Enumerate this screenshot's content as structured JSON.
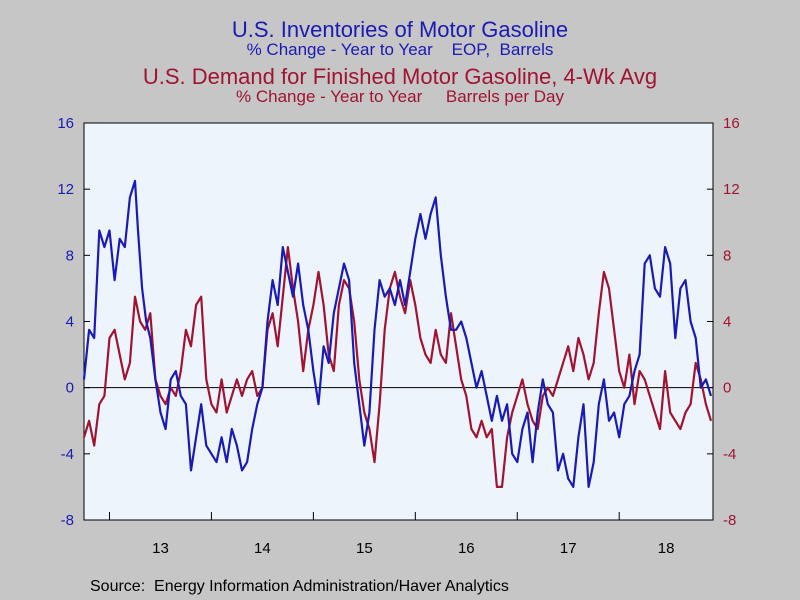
{
  "titles": {
    "title1": "U.S. Inventories of Motor Gasoline",
    "subtitle1": "% Change - Year to Year    EOP,  Barrels",
    "title2": "U.S. Demand for Finished Motor Gasoline, 4-Wk Avg",
    "subtitle2": "% Change - Year to Year     Barrels per Day"
  },
  "source": "Source:  Energy Information Administration/Haver Analytics",
  "colors": {
    "inventories": "#1a1ab4",
    "demand": "#a01432",
    "plot_bg": "#eef4fb",
    "frame_bg": "#c6c6c6"
  },
  "chart_data": {
    "type": "line",
    "x_tick_labels": [
      "13",
      "14",
      "15",
      "16",
      "17",
      "18"
    ],
    "xlim": [
      2012.75,
      2018.92
    ],
    "ylim": [
      -8,
      16
    ],
    "y_ticks": [
      -8,
      -4,
      0,
      4,
      8,
      12,
      16
    ],
    "y_tick_labels_left": [
      "-8",
      "-4",
      "0",
      "4",
      "8",
      "12",
      "16"
    ],
    "y_tick_labels_right": [
      "-8",
      "-4",
      "0",
      "4",
      "8",
      "12",
      "16"
    ],
    "zero_line": true,
    "grid": false,
    "series": [
      {
        "key": "inventories",
        "axis": "left",
        "x": [
          2012.75,
          2012.8,
          2012.85,
          2012.9,
          2012.95,
          2013.0,
          2013.05,
          2013.1,
          2013.15,
          2013.2,
          2013.25,
          2013.28,
          2013.32,
          2013.36,
          2013.4,
          2013.45,
          2013.5,
          2013.55,
          2013.6,
          2013.65,
          2013.7,
          2013.75,
          2013.8,
          2013.85,
          2013.9,
          2013.95,
          2014.0,
          2014.05,
          2014.1,
          2014.15,
          2014.2,
          2014.25,
          2014.3,
          2014.35,
          2014.4,
          2014.45,
          2014.5,
          2014.55,
          2014.6,
          2014.65,
          2014.7,
          2014.75,
          2014.8,
          2014.85,
          2014.9,
          2014.95,
          2015.0,
          2015.05,
          2015.1,
          2015.15,
          2015.2,
          2015.25,
          2015.3,
          2015.35,
          2015.4,
          2015.45,
          2015.5,
          2015.55,
          2015.6,
          2015.65,
          2015.7,
          2015.75,
          2015.8,
          2015.85,
          2015.9,
          2015.95,
          2016.0,
          2016.05,
          2016.1,
          2016.15,
          2016.2,
          2016.25,
          2016.3,
          2016.35,
          2016.4,
          2016.45,
          2016.5,
          2016.55,
          2016.6,
          2016.65,
          2016.7,
          2016.75,
          2016.8,
          2016.85,
          2016.9,
          2016.95,
          2017.0,
          2017.05,
          2017.1,
          2017.15,
          2017.2,
          2017.25,
          2017.3,
          2017.35,
          2017.4,
          2017.45,
          2017.5,
          2017.55,
          2017.6,
          2017.65,
          2017.7,
          2017.75,
          2017.8,
          2017.85,
          2017.9,
          2017.95,
          2018.0,
          2018.05,
          2018.1,
          2018.15,
          2018.2,
          2018.25,
          2018.3,
          2018.35,
          2018.4,
          2018.45,
          2018.5,
          2018.55,
          2018.6,
          2018.65,
          2018.7,
          2018.75,
          2018.8,
          2018.85,
          2018.9
        ],
        "values": [
          0.5,
          3.5,
          3.0,
          9.5,
          8.5,
          9.5,
          6.5,
          9.0,
          8.5,
          11.5,
          12.5,
          9.5,
          6.0,
          4.0,
          3.0,
          0.5,
          -1.5,
          -2.5,
          0.5,
          1.0,
          -0.5,
          -1.0,
          -5.0,
          -3.0,
          -1.0,
          -3.5,
          -4.0,
          -4.5,
          -3.0,
          -4.5,
          -2.5,
          -3.5,
          -5.0,
          -4.5,
          -2.5,
          -1.0,
          0.0,
          4.0,
          6.5,
          5.0,
          8.5,
          7.0,
          5.5,
          7.5,
          5.0,
          3.5,
          1.0,
          -1.0,
          2.5,
          1.5,
          4.5,
          6.0,
          7.5,
          6.5,
          1.5,
          -1.0,
          -3.5,
          -1.5,
          3.5,
          6.5,
          5.5,
          6.0,
          5.0,
          6.5,
          5.0,
          7.0,
          9.0,
          10.5,
          9.0,
          10.5,
          11.5,
          8.0,
          5.5,
          3.5,
          3.5,
          4.0,
          3.0,
          1.5,
          0.0,
          1.0,
          -0.5,
          -2.0,
          -0.5,
          -2.0,
          -1.0,
          -4.0,
          -4.5,
          -2.5,
          -1.5,
          -4.5,
          -1.5,
          0.5,
          -1.0,
          -1.5,
          -5.0,
          -4.0,
          -5.5,
          -6.0,
          -3.0,
          -1.0,
          -6.0,
          -4.5,
          -1.0,
          0.5,
          -2.0,
          -1.5,
          -3.0,
          -1.0,
          -0.5,
          1.0,
          2.0,
          7.5,
          8.0,
          6.0,
          5.5,
          8.5,
          7.5,
          3.0,
          6.0,
          6.5,
          4.0,
          3.0,
          0.0,
          0.5,
          -0.5
        ],
        "ylim": [
          -8,
          16
        ]
      },
      {
        "key": "demand",
        "axis": "right",
        "x": [
          2012.75,
          2012.8,
          2012.85,
          2012.9,
          2012.95,
          2013.0,
          2013.05,
          2013.1,
          2013.15,
          2013.2,
          2013.25,
          2013.3,
          2013.35,
          2013.4,
          2013.45,
          2013.5,
          2013.55,
          2013.6,
          2013.65,
          2013.7,
          2013.75,
          2013.8,
          2013.85,
          2013.9,
          2013.95,
          2014.0,
          2014.05,
          2014.1,
          2014.15,
          2014.2,
          2014.25,
          2014.3,
          2014.35,
          2014.4,
          2014.45,
          2014.5,
          2014.55,
          2014.6,
          2014.65,
          2014.7,
          2014.75,
          2014.8,
          2014.85,
          2014.9,
          2014.95,
          2015.0,
          2015.05,
          2015.1,
          2015.15,
          2015.2,
          2015.25,
          2015.3,
          2015.35,
          2015.4,
          2015.45,
          2015.5,
          2015.55,
          2015.6,
          2015.65,
          2015.7,
          2015.75,
          2015.8,
          2015.85,
          2015.9,
          2015.95,
          2016.0,
          2016.05,
          2016.1,
          2016.15,
          2016.2,
          2016.25,
          2016.3,
          2016.35,
          2016.4,
          2016.45,
          2016.5,
          2016.55,
          2016.6,
          2016.65,
          2016.7,
          2016.75,
          2016.8,
          2016.85,
          2016.9,
          2016.95,
          2017.0,
          2017.05,
          2017.1,
          2017.15,
          2017.2,
          2017.25,
          2017.3,
          2017.35,
          2017.4,
          2017.45,
          2017.5,
          2017.55,
          2017.6,
          2017.65,
          2017.7,
          2017.75,
          2017.8,
          2017.85,
          2017.9,
          2017.95,
          2018.0,
          2018.05,
          2018.1,
          2018.15,
          2018.2,
          2018.25,
          2018.3,
          2018.35,
          2018.4,
          2018.45,
          2018.5,
          2018.55,
          2018.6,
          2018.65,
          2018.7,
          2018.75,
          2018.8,
          2018.85,
          2018.9
        ],
        "values": [
          -3.0,
          -2.0,
          -3.5,
          -1.0,
          -0.5,
          3.0,
          3.5,
          2.0,
          0.5,
          1.5,
          5.5,
          4.0,
          3.5,
          4.5,
          0.5,
          -0.5,
          -1.0,
          0.0,
          -0.5,
          1.0,
          3.5,
          2.5,
          5.0,
          5.5,
          0.5,
          -1.0,
          -1.5,
          0.5,
          -1.5,
          -0.5,
          0.5,
          -0.5,
          0.5,
          1.0,
          -0.5,
          0.0,
          3.5,
          4.5,
          2.5,
          5.5,
          8.5,
          6.0,
          4.0,
          1.0,
          3.5,
          5.0,
          7.0,
          5.0,
          2.0,
          1.0,
          5.0,
          6.5,
          6.0,
          4.0,
          0.5,
          -1.5,
          -2.5,
          -4.5,
          -1.0,
          3.5,
          6.0,
          7.0,
          5.5,
          4.5,
          6.5,
          5.0,
          3.0,
          2.0,
          1.5,
          3.5,
          2.0,
          1.5,
          4.5,
          2.5,
          0.5,
          -0.5,
          -2.5,
          -3.0,
          -2.0,
          -3.0,
          -2.5,
          -6.0,
          -6.0,
          -3.0,
          -1.5,
          -0.5,
          0.5,
          -1.0,
          -2.0,
          -2.5,
          -0.5,
          0.0,
          -0.5,
          0.5,
          1.5,
          2.5,
          1.0,
          3.0,
          2.0,
          0.5,
          1.5,
          4.5,
          7.0,
          6.0,
          3.5,
          1.0,
          0.0,
          2.0,
          -1.0,
          1.0,
          0.5,
          -0.5,
          -1.5,
          -2.5,
          1.0,
          -1.5,
          -2.0,
          -2.5,
          -1.5,
          -1.0,
          1.5,
          0.5,
          -1.0,
          -2.0
        ],
        "ylim": [
          -8,
          16
        ]
      }
    ]
  }
}
